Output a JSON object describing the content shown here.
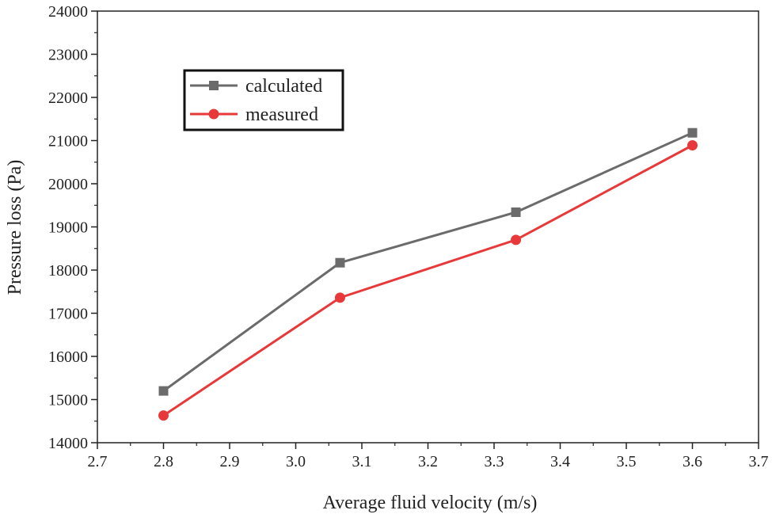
{
  "chart_data": {
    "type": "line",
    "title": "",
    "xlabel": "Average fluid velocity (m/s)",
    "ylabel": "Pressure loss (Pa)",
    "xlim": [
      2.7,
      3.7
    ],
    "ylim": [
      14000,
      24000
    ],
    "x_ticks": [
      "2.7",
      "2.8",
      "2.9",
      "3.0",
      "3.1",
      "3.2",
      "3.3",
      "3.4",
      "3.5",
      "3.6",
      "3.7"
    ],
    "y_ticks": [
      "14000",
      "15000",
      "16000",
      "17000",
      "18000",
      "19000",
      "20000",
      "21000",
      "22000",
      "23000",
      "24000"
    ],
    "legend_position": "top-left",
    "series": [
      {
        "name": "calculated",
        "color": "#6b6b6b",
        "marker": "square",
        "x": [
          2.8,
          3.067,
          3.333,
          3.6
        ],
        "values": [
          15200,
          18170,
          19340,
          21180
        ]
      },
      {
        "name": "measured",
        "color": "#e8393a",
        "marker": "circle",
        "x": [
          2.8,
          3.067,
          3.333,
          3.6
        ],
        "values": [
          14630,
          17360,
          18700,
          20890
        ]
      }
    ]
  }
}
